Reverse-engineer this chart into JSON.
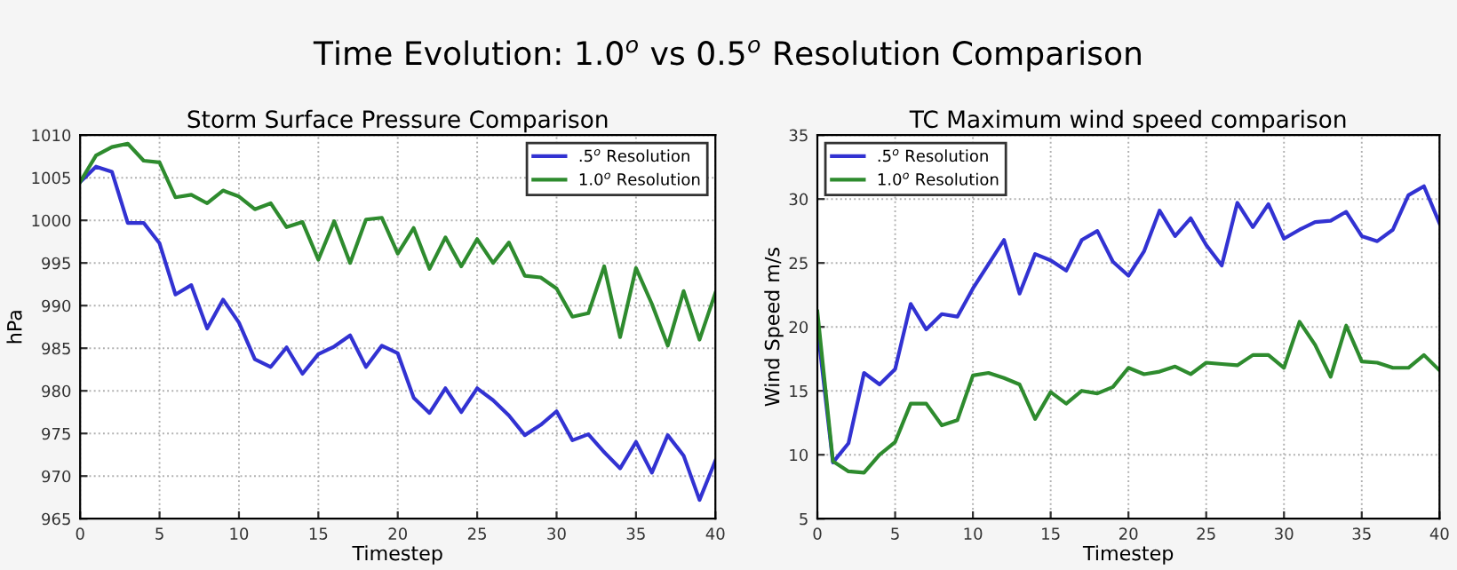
{
  "chart_data": [
    {
      "type": "line",
      "title": "Storm Surface Pressure Comparison",
      "xlabel": "Timestep",
      "ylabel": "hPa",
      "annotations": [
        "Time Evolution: 1.0$^{o}$ vs 0.5$^{o}$ Resolution Comparison"
      ],
      "x": [
        0,
        1,
        2,
        3,
        4,
        5,
        6,
        7,
        8,
        9,
        10,
        11,
        12,
        13,
        14,
        15,
        16,
        17,
        18,
        19,
        20,
        21,
        22,
        23,
        24,
        25,
        26,
        27,
        28,
        29,
        30,
        31,
        32,
        33,
        34,
        35,
        36,
        37,
        38,
        39,
        40
      ],
      "series": [
        {
          "name": ".5$^{o}$ Resolution",
          "color": "#3232d2",
          "values": [
            1004.5,
            1006.3,
            1005.7,
            999.7,
            999.7,
            997.3,
            991.3,
            992.4,
            987.3,
            990.7,
            988,
            983.7,
            982.8,
            985.1,
            982,
            984.3,
            985.2,
            986.5,
            982.8,
            985.3,
            984.4,
            979.2,
            977.4,
            980.3,
            977.5,
            980.3,
            978.9,
            977.1,
            974.8,
            976,
            977.6,
            974.2,
            974.9,
            972.8,
            970.9,
            974,
            970.4,
            974.8,
            972.4,
            967.2,
            971.8
          ]
        },
        {
          "name": "1.0$^{o}$ Resolution",
          "color": "#2e8b2e",
          "values": [
            1004.5,
            1007.6,
            1008.6,
            1009,
            1007,
            1006.8,
            1002.7,
            1003,
            1002,
            1003.5,
            1002.8,
            1001.3,
            1002,
            999.2,
            999.8,
            995.4,
            999.9,
            995,
            1000.1,
            1000.3,
            996.1,
            999.1,
            994.3,
            998,
            994.6,
            997.8,
            995,
            997.4,
            993.5,
            993.3,
            992,
            988.7,
            989.1,
            994.6,
            986.3,
            994.4,
            990.2,
            985.3,
            991.7,
            986,
            991.5
          ]
        }
      ],
      "xlim": [
        0,
        40
      ],
      "xticks": [
        0,
        5,
        10,
        15,
        20,
        25,
        30,
        35,
        40
      ],
      "ylim": [
        965,
        1010
      ],
      "yticks": [
        965,
        970,
        975,
        980,
        985,
        990,
        995,
        1000,
        1005,
        1010
      ],
      "grid": true,
      "legend": "top right",
      "line_style": "solid",
      "marker": "none"
    },
    {
      "type": "line",
      "title": "TC Maximum wind speed comparison",
      "xlabel": "Timestep",
      "ylabel": "Wind Speed m/s",
      "x": [
        0,
        1,
        2,
        3,
        4,
        5,
        6,
        7,
        8,
        9,
        10,
        11,
        12,
        13,
        14,
        15,
        16,
        17,
        18,
        19,
        20,
        21,
        22,
        23,
        24,
        25,
        26,
        27,
        28,
        29,
        30,
        31,
        32,
        33,
        34,
        35,
        36,
        37,
        38,
        39,
        40
      ],
      "series": [
        {
          "name": ".5$^{o}$ Resolution",
          "color": "#3232d2",
          "values": [
            20,
            9.4,
            10.9,
            16.4,
            15.5,
            16.7,
            21.8,
            19.8,
            21,
            20.8,
            23,
            24.9,
            26.8,
            22.6,
            25.7,
            25.2,
            24.4,
            26.8,
            27.5,
            25.1,
            24,
            25.9,
            29.1,
            27.1,
            28.5,
            26.4,
            24.8,
            29.7,
            27.8,
            29.6,
            26.9,
            27.6,
            28.2,
            28.3,
            29,
            27.1,
            26.7,
            27.6,
            30.3,
            31,
            28.1
          ]
        },
        {
          "name": "1.0$^{o}$ Resolution",
          "color": "#2e8b2e",
          "values": [
            21.2,
            9.5,
            8.7,
            8.6,
            10,
            11,
            14,
            14,
            12.3,
            12.7,
            16.2,
            16.4,
            16,
            15.5,
            12.8,
            14.9,
            14,
            15,
            14.8,
            15.3,
            16.8,
            16.3,
            16.5,
            16.9,
            16.3,
            17.2,
            17.1,
            17,
            17.8,
            17.8,
            16.8,
            20.4,
            18.6,
            16.1,
            20.1,
            17.3,
            17.2,
            16.8,
            16.8,
            17.8,
            16.6
          ]
        }
      ],
      "xlim": [
        0,
        40
      ],
      "xticks": [
        0,
        5,
        10,
        15,
        20,
        25,
        30,
        35,
        40
      ],
      "ylim": [
        5,
        35
      ],
      "yticks": [
        5,
        10,
        15,
        20,
        25,
        30,
        35
      ],
      "grid": true,
      "legend": "top left",
      "line_style": "solid",
      "marker": "none"
    }
  ]
}
